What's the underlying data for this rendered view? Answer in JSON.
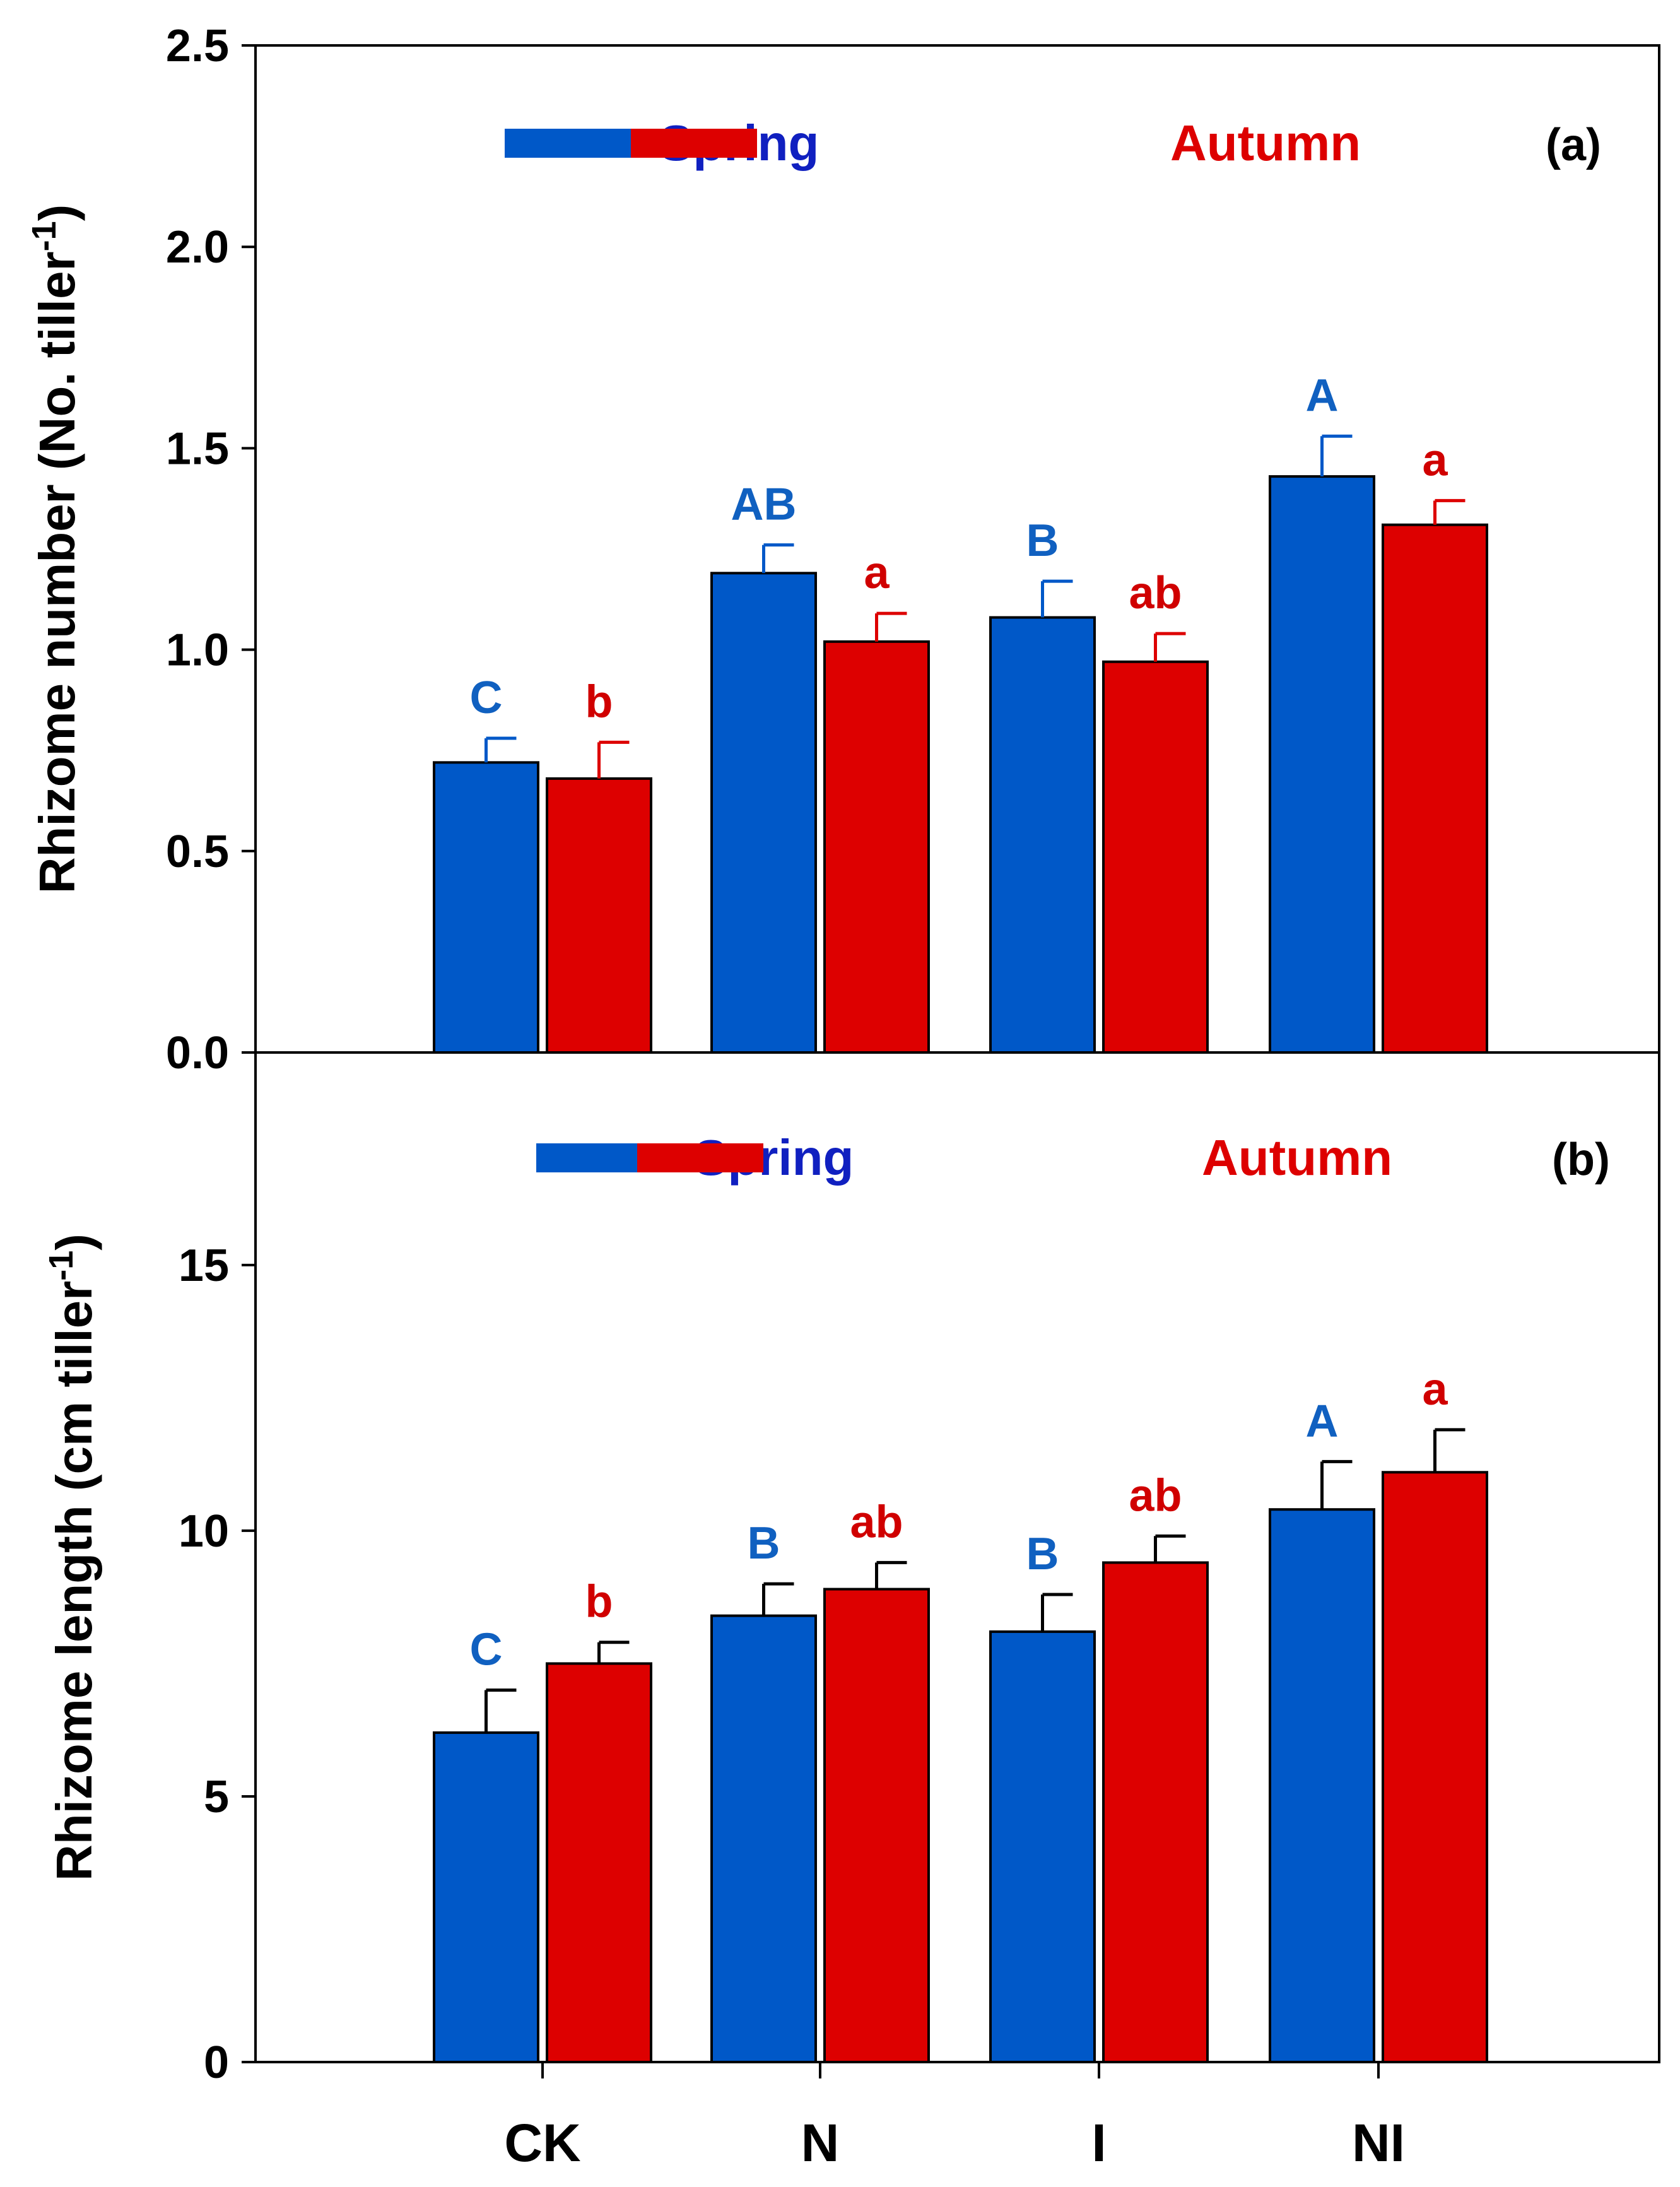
{
  "chart_data": [
    {
      "type": "bar",
      "panel_label": "(a)",
      "title": "",
      "xlabel": "",
      "ylabel": "Rhizome number (No. tiller",
      "ylabel_superscript": "-1",
      "ylabel_close": ")",
      "ylim": [
        0,
        2.5
      ],
      "yticks": [
        0.0,
        0.5,
        1.0,
        1.5,
        2.0,
        2.5
      ],
      "ytick_labels": [
        "0.0",
        "0.5",
        "1.0",
        "1.5",
        "2.0",
        "2.5"
      ],
      "categories": [
        "CK",
        "N",
        "I",
        "NI"
      ],
      "legend_position": "top",
      "series": [
        {
          "name": "Spring",
          "color": "#0058C8",
          "label_color": "#1060C0",
          "legend_text_color": "#1020C0",
          "values": [
            0.72,
            1.19,
            1.08,
            1.43
          ],
          "errors": [
            0.06,
            0.07,
            0.09,
            0.1
          ],
          "significance": [
            "C",
            "AB",
            "B",
            "A"
          ]
        },
        {
          "name": "Autumn",
          "color": "#DD0000",
          "label_color": "#D00000",
          "legend_text_color": "#DD0000",
          "values": [
            0.68,
            1.02,
            0.97,
            1.31
          ],
          "errors": [
            0.09,
            0.07,
            0.07,
            0.06
          ],
          "significance": [
            "b",
            "a",
            "ab",
            "a"
          ]
        }
      ]
    },
    {
      "type": "bar",
      "panel_label": "(b)",
      "title": "",
      "xlabel": "",
      "ylabel": "Rhizome length (cm tiller",
      "ylabel_superscript": "-1",
      "ylabel_close": ")",
      "ylim": [
        0,
        19
      ],
      "yticks": [
        0,
        5,
        10,
        15
      ],
      "ytick_labels": [
        "0",
        "5",
        "10",
        "15"
      ],
      "categories": [
        "CK",
        "N",
        "I",
        "NI"
      ],
      "legend_position": "top",
      "series": [
        {
          "name": "Spring",
          "color": "#0058C8",
          "label_color": "#1060C0",
          "legend_text_color": "#1020C0",
          "values": [
            6.2,
            8.4,
            8.1,
            10.4
          ],
          "errors": [
            0.8,
            0.6,
            0.7,
            0.9
          ],
          "significance": [
            "C",
            "B",
            "B",
            "A"
          ]
        },
        {
          "name": "Autumn",
          "color": "#DD0000",
          "label_color": "#D00000",
          "legend_text_color": "#DD0000",
          "values": [
            7.5,
            8.9,
            9.4,
            11.1
          ],
          "errors": [
            0.4,
            0.5,
            0.5,
            0.8
          ],
          "significance": [
            "b",
            "ab",
            "ab",
            "a"
          ]
        }
      ]
    }
  ]
}
